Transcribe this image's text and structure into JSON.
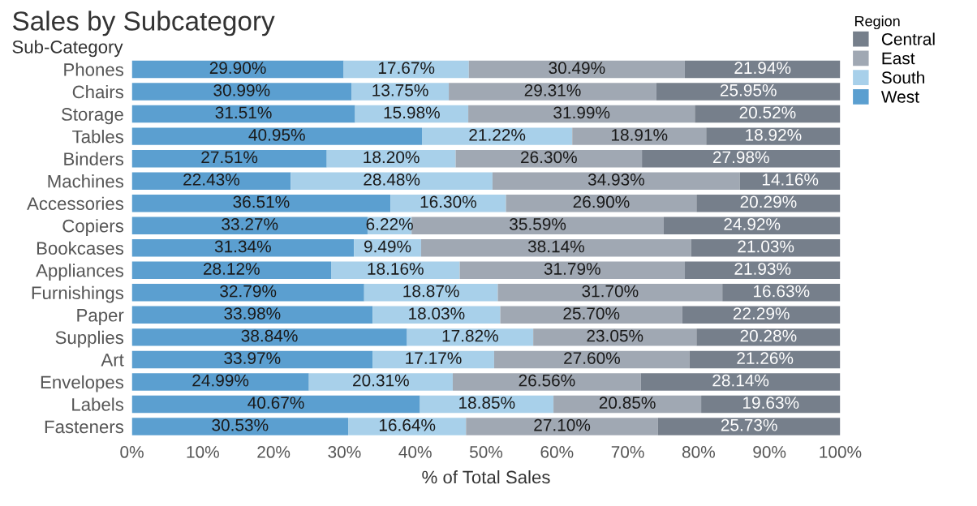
{
  "chart_data": {
    "type": "bar",
    "orientation": "horizontal",
    "stacked": true,
    "title": "Sales by Subcategory",
    "ylabel": "Sub-Category",
    "xlabel": "% of Total Sales",
    "legend_title": "Region",
    "legend": "right",
    "categories": [
      "Phones",
      "Chairs",
      "Storage",
      "Tables",
      "Binders",
      "Machines",
      "Accessories",
      "Copiers",
      "Bookcases",
      "Appliances",
      "Furnishings",
      "Paper",
      "Supplies",
      "Art",
      "Envelopes",
      "Labels",
      "Fasteners"
    ],
    "series": [
      {
        "name": "West",
        "color": "#5b9fd0",
        "values": [
          29.9,
          30.99,
          31.51,
          40.95,
          27.51,
          22.43,
          36.51,
          33.27,
          31.34,
          28.12,
          32.79,
          33.98,
          38.84,
          33.97,
          24.99,
          40.67,
          30.53
        ],
        "value_labels": [
          "29.90%",
          "30.99%",
          "31.51%",
          "40.95%",
          "27.51%",
          "22.43%",
          "36.51%",
          "33.27%",
          "31.34%",
          "28.12%",
          "32.79%",
          "33.98%",
          "38.84%",
          "33.97%",
          "24.99%",
          "40.67%",
          "30.53%"
        ]
      },
      {
        "name": "South",
        "color": "#a8d0ea",
        "values": [
          17.67,
          13.75,
          15.98,
          21.22,
          18.2,
          28.48,
          16.3,
          6.22,
          9.49,
          18.16,
          18.87,
          18.03,
          17.82,
          17.17,
          20.31,
          18.85,
          16.64
        ],
        "value_labels": [
          "17.67%",
          "13.75%",
          "15.98%",
          "21.22%",
          "18.20%",
          "28.48%",
          "16.30%",
          "6.22%",
          "9.49%",
          "18.16%",
          "18.87%",
          "18.03%",
          "17.82%",
          "17.17%",
          "20.31%",
          "18.85%",
          "16.64%"
        ]
      },
      {
        "name": "East",
        "color": "#a0a8b3",
        "values": [
          30.49,
          29.31,
          31.99,
          18.91,
          26.3,
          34.93,
          26.9,
          35.59,
          38.14,
          31.79,
          31.7,
          25.7,
          23.05,
          27.6,
          26.56,
          20.85,
          27.1
        ],
        "value_labels": [
          "30.49%",
          "29.31%",
          "31.99%",
          "18.91%",
          "26.30%",
          "34.93%",
          "26.90%",
          "35.59%",
          "38.14%",
          "31.79%",
          "31.70%",
          "25.70%",
          "23.05%",
          "27.60%",
          "26.56%",
          "20.85%",
          "27.10%"
        ]
      },
      {
        "name": "Central",
        "color": "#767f8b",
        "values": [
          21.94,
          25.95,
          20.52,
          18.92,
          27.98,
          14.16,
          20.29,
          24.92,
          21.03,
          21.93,
          16.63,
          22.29,
          20.28,
          21.26,
          28.14,
          19.63,
          25.73
        ],
        "value_labels": [
          "21.94%",
          "25.95%",
          "20.52%",
          "18.92%",
          "27.98%",
          "14.16%",
          "20.29%",
          "24.92%",
          "21.03%",
          "21.93%",
          "16.63%",
          "22.29%",
          "20.28%",
          "21.26%",
          "28.14%",
          "19.63%",
          "25.73%"
        ]
      }
    ],
    "xlim": [
      0,
      100
    ],
    "xticks": [
      {
        "value": 0,
        "label": "0%"
      },
      {
        "value": 10,
        "label": "10%"
      },
      {
        "value": 20,
        "label": "20%"
      },
      {
        "value": 30,
        "label": "30%"
      },
      {
        "value": 40,
        "label": "40%"
      },
      {
        "value": 50,
        "label": "50%"
      },
      {
        "value": 60,
        "label": "60%"
      },
      {
        "value": 70,
        "label": "70%"
      },
      {
        "value": 80,
        "label": "80%"
      },
      {
        "value": 90,
        "label": "90%"
      },
      {
        "value": 100,
        "label": "100%"
      }
    ]
  }
}
